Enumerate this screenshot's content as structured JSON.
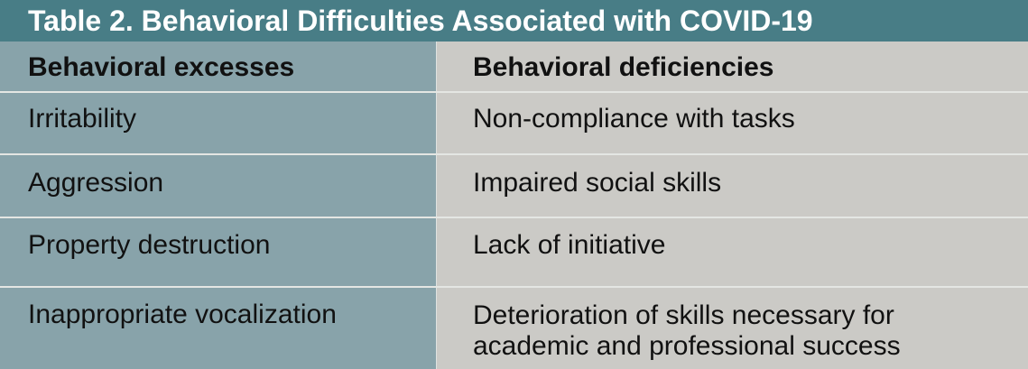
{
  "table": {
    "title": "Table 2. Behavioral Difficulties Associated with COVID-19",
    "headers": {
      "left": "Behavioral excesses",
      "right": "Behavioral deficiencies"
    },
    "rows": [
      {
        "excess": "Irritability",
        "deficiency_lines": [
          "Non-compliance with tasks"
        ]
      },
      {
        "excess": "Aggression",
        "deficiency_lines": [
          "Impaired social skills"
        ]
      },
      {
        "excess": "Property destruction",
        "deficiency_lines": [
          "Lack of initiative"
        ]
      },
      {
        "excess": "Inappropriate vocalization",
        "deficiency_lines": [
          "Deterioration of skills necessary for",
          "academic and professional success"
        ]
      }
    ]
  },
  "colors": {
    "title_bg": "#487d86",
    "left_column_bg": "#88a3aa",
    "right_column_bg": "#cbcac6",
    "row_divider": "#e4e6e3"
  }
}
